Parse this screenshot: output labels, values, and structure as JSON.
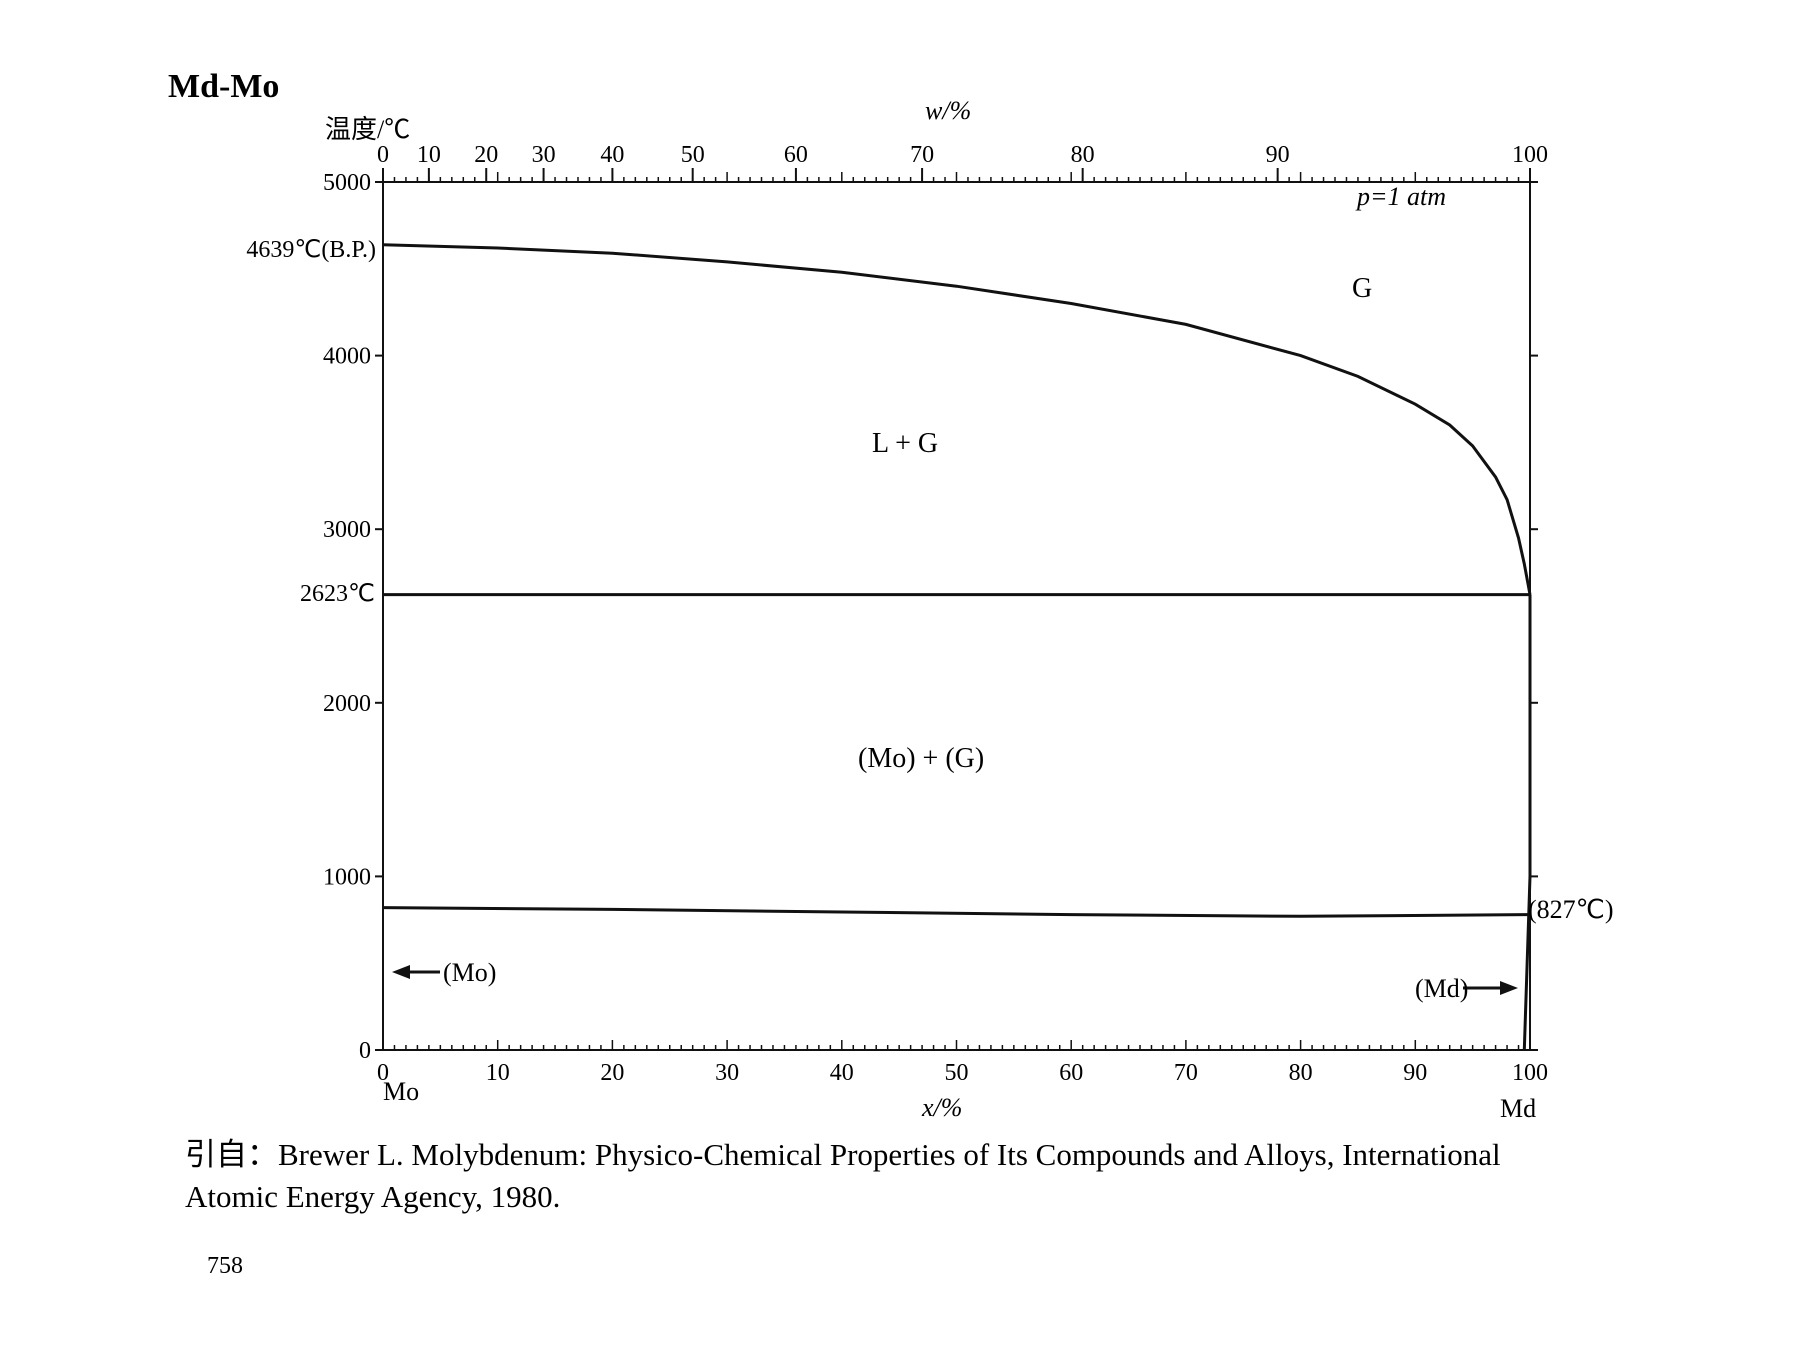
{
  "page_title": "Md-Mo",
  "chart_data": {
    "type": "line",
    "title": "Md-Mo",
    "ylabel": "温度/℃",
    "xlabel_bottom": "x/%",
    "xlabel_top": "w/%",
    "ylim": [
      0,
      5000
    ],
    "xlim": [
      0,
      100
    ],
    "y_ticks": [
      "0",
      "1000",
      "2000",
      "3000",
      "4000",
      "5000"
    ],
    "x_ticks_bottom": [
      "0",
      "10",
      "20",
      "30",
      "40",
      "50",
      "60",
      "70",
      "80",
      "90",
      "100"
    ],
    "x_ticks_top": [
      "0",
      "10",
      "20",
      "30",
      "40",
      "50",
      "60",
      "70",
      "80",
      "90",
      "100"
    ],
    "x_end_labels": {
      "left": "Mo",
      "right": "Md"
    },
    "special_y_labels": {
      "bp": "4639℃(B.P.)",
      "eutectic": "2623℃"
    },
    "condition": "p=1 atm",
    "phase_labels": [
      "G",
      "L + G",
      "(Mo) + (G)"
    ],
    "annotations": {
      "mo_arrow": "(Mo)",
      "md_arrow": "(Md)",
      "md_temp": "(827℃)"
    },
    "series": [
      {
        "name": "",
        "x": [
          0,
          10,
          20,
          30,
          40,
          50,
          60,
          70,
          80,
          85,
          90,
          93,
          95,
          97,
          98,
          99,
          99.5,
          100
        ],
        "y": [
          4639,
          4620,
          4590,
          4540,
          4480,
          4400,
          4300,
          4180,
          4000,
          3880,
          3720,
          3600,
          3480,
          3300,
          3170,
          2950,
          2800,
          2623
        ]
      },
      {
        "name": "",
        "x": [
          0,
          100
        ],
        "y": [
          2623,
          2623
        ]
      },
      {
        "name": "",
        "x": [
          0,
          20,
          40,
          60,
          80,
          100
        ],
        "y": [
          820,
          810,
          795,
          780,
          770,
          780
        ]
      },
      {
        "name": "",
        "x": [
          99.5,
          100,
          100
        ],
        "y": [
          0,
          1000,
          2623
        ]
      }
    ]
  },
  "citation": {
    "line1": "引自：Brewer L. Molybdenum: Physico-Chemical Properties of Its Compounds and Alloys, International",
    "line2": "Atomic Energy Agency, 1980."
  },
  "page_number": "758"
}
